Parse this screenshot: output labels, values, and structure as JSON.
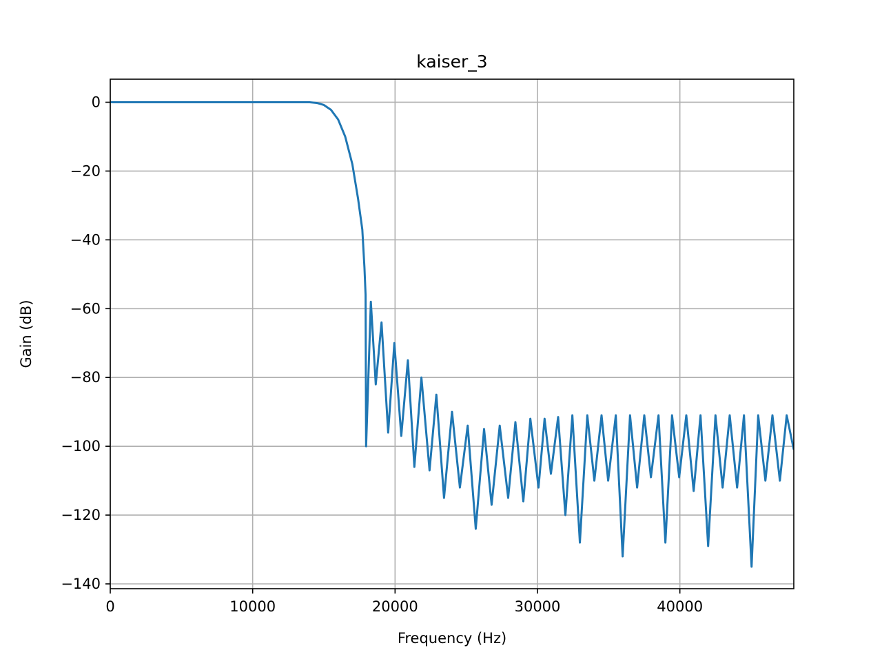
{
  "chart_data": {
    "type": "line",
    "title": "kaiser_3",
    "xlabel": "Frequency (Hz)",
    "ylabel": "Gain (dB)",
    "grid": true,
    "xlim": [
      0,
      48000
    ],
    "ylim": [
      -141.4,
      6.7
    ],
    "xticks": [
      0,
      10000,
      20000,
      30000,
      40000
    ],
    "yticks": [
      0,
      {
        "value": -20,
        "label": "−20"
      },
      {
        "value": -40,
        "label": "−40"
      },
      {
        "value": -60,
        "label": "−60"
      },
      {
        "value": -80,
        "label": "−80"
      },
      {
        "value": -100,
        "label": "−100"
      },
      {
        "value": -120,
        "label": "−120"
      },
      {
        "value": -140,
        "label": "−140"
      }
    ],
    "x": [
      0,
      14000,
      14500,
      15000,
      15500,
      16000,
      16500,
      17000,
      17400,
      17700,
      17850,
      17930,
      17966,
      18300,
      18644,
      19050,
      19516,
      19950,
      20436,
      20900,
      21356,
      21850,
      22421,
      22900,
      23438,
      24000,
      24552,
      25100,
      25666,
      26250,
      26780,
      27350,
      27942,
      28450,
      29007,
      29500,
      30073,
      30500,
      30944,
      31450,
      31961,
      32450,
      32978,
      33500,
      33995,
      34500,
      34964,
      35500,
      35981,
      36500,
      36998,
      37500,
      37966,
      38500,
      38983,
      39450,
      39952,
      40450,
      40969,
      41450,
      41985,
      42500,
      43002,
      43500,
      44019,
      44500,
      45036,
      45500,
      46005,
      46500,
      47022,
      47500,
      48000
    ],
    "series": [
      {
        "name": "kaiser_3",
        "color": "#1f77b4",
        "values": [
          0,
          0,
          -0.2,
          -0.8,
          -2.2,
          -5,
          -10,
          -18,
          -28,
          -37,
          -48,
          -56,
          -100,
          -58,
          -82,
          -64,
          -96,
          -70,
          -97,
          -75,
          -106,
          -80,
          -107,
          -85,
          -115,
          -90,
          -112,
          -94,
          -124,
          -95,
          -117,
          -94,
          -115,
          -93,
          -116,
          -92,
          -112,
          -92,
          -108,
          -91.5,
          -120,
          -91,
          -128,
          -91,
          -110,
          -91,
          -110,
          -91,
          -132,
          -91,
          -112,
          -91,
          -109,
          -91,
          -128,
          -91,
          -109,
          -91,
          -113,
          -91,
          -129,
          -91,
          -112,
          -91,
          -112,
          -91,
          -135,
          -91,
          -110,
          -91,
          -110,
          -91,
          -101
        ]
      }
    ]
  }
}
